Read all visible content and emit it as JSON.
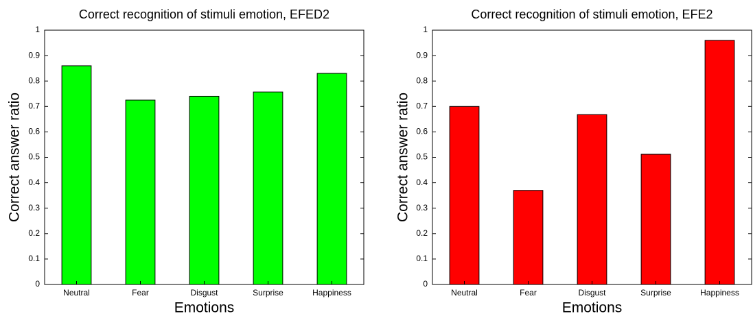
{
  "chart_data": [
    {
      "type": "bar",
      "title": "Correct recognition of stimuli emotion, EFED2",
      "x_label": "Emotions",
      "y_label": "Correct answer ratio",
      "categories": [
        "Neutral",
        "Fear",
        "Disgust",
        "Surprise",
        "Happiness"
      ],
      "values": [
        0.86,
        0.725,
        0.74,
        0.757,
        0.83
      ],
      "color": "#00ff00",
      "ylim": [
        0,
        1
      ],
      "yticks": [
        0,
        0.1,
        0.2,
        0.3,
        0.4,
        0.5,
        0.6,
        0.7,
        0.8,
        0.9,
        1
      ]
    },
    {
      "type": "bar",
      "title": "Correct recognition of stimuli emotion, EFE2",
      "x_label": "Emotions",
      "y_label": "Correct answer ratio",
      "categories": [
        "Neutral",
        "Fear",
        "Disgust",
        "Surprise",
        "Happiness"
      ],
      "values": [
        0.7,
        0.37,
        0.668,
        0.512,
        0.96
      ],
      "color": "#ff0000",
      "ylim": [
        0,
        1
      ],
      "yticks": [
        0,
        0.1,
        0.2,
        0.3,
        0.4,
        0.5,
        0.6,
        0.7,
        0.8,
        0.9,
        1
      ]
    }
  ]
}
